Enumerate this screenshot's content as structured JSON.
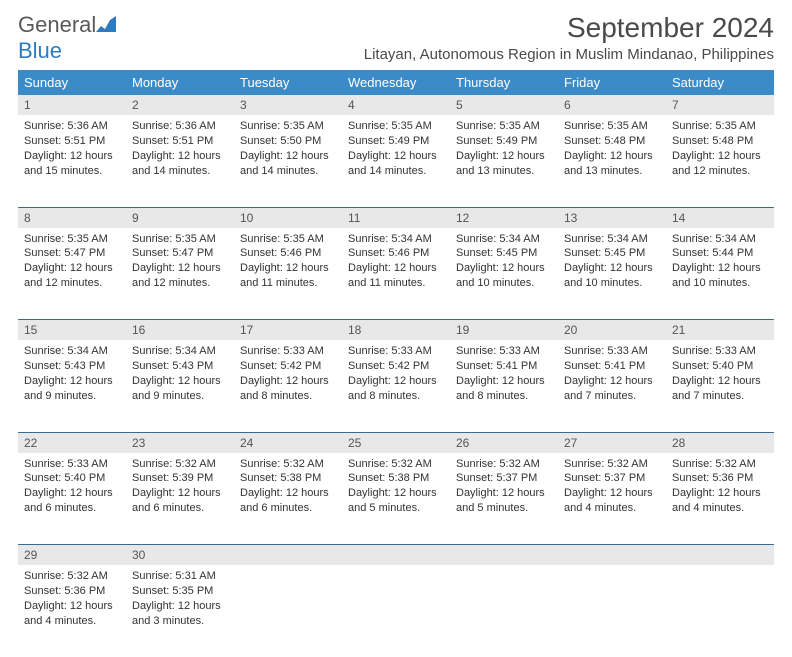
{
  "logo": {
    "text1": "General",
    "text2": "Blue"
  },
  "title": "September 2024",
  "location": "Litayan, Autonomous Region in Muslim Mindanao, Philippines",
  "colors": {
    "header_bg": "#3b8bc9",
    "header_text": "#ffffff",
    "daynum_bg": "#e8e8e8",
    "border": "#3b6a8f",
    "logo_gray": "#5a5a5a",
    "logo_blue": "#2f7bbf"
  },
  "weekdays": [
    "Sunday",
    "Monday",
    "Tuesday",
    "Wednesday",
    "Thursday",
    "Friday",
    "Saturday"
  ],
  "weeks": [
    [
      {
        "n": "1",
        "sunrise": "Sunrise: 5:36 AM",
        "sunset": "Sunset: 5:51 PM",
        "daylight": "Daylight: 12 hours and 15 minutes."
      },
      {
        "n": "2",
        "sunrise": "Sunrise: 5:36 AM",
        "sunset": "Sunset: 5:51 PM",
        "daylight": "Daylight: 12 hours and 14 minutes."
      },
      {
        "n": "3",
        "sunrise": "Sunrise: 5:35 AM",
        "sunset": "Sunset: 5:50 PM",
        "daylight": "Daylight: 12 hours and 14 minutes."
      },
      {
        "n": "4",
        "sunrise": "Sunrise: 5:35 AM",
        "sunset": "Sunset: 5:49 PM",
        "daylight": "Daylight: 12 hours and 14 minutes."
      },
      {
        "n": "5",
        "sunrise": "Sunrise: 5:35 AM",
        "sunset": "Sunset: 5:49 PM",
        "daylight": "Daylight: 12 hours and 13 minutes."
      },
      {
        "n": "6",
        "sunrise": "Sunrise: 5:35 AM",
        "sunset": "Sunset: 5:48 PM",
        "daylight": "Daylight: 12 hours and 13 minutes."
      },
      {
        "n": "7",
        "sunrise": "Sunrise: 5:35 AM",
        "sunset": "Sunset: 5:48 PM",
        "daylight": "Daylight: 12 hours and 12 minutes."
      }
    ],
    [
      {
        "n": "8",
        "sunrise": "Sunrise: 5:35 AM",
        "sunset": "Sunset: 5:47 PM",
        "daylight": "Daylight: 12 hours and 12 minutes."
      },
      {
        "n": "9",
        "sunrise": "Sunrise: 5:35 AM",
        "sunset": "Sunset: 5:47 PM",
        "daylight": "Daylight: 12 hours and 12 minutes."
      },
      {
        "n": "10",
        "sunrise": "Sunrise: 5:35 AM",
        "sunset": "Sunset: 5:46 PM",
        "daylight": "Daylight: 12 hours and 11 minutes."
      },
      {
        "n": "11",
        "sunrise": "Sunrise: 5:34 AM",
        "sunset": "Sunset: 5:46 PM",
        "daylight": "Daylight: 12 hours and 11 minutes."
      },
      {
        "n": "12",
        "sunrise": "Sunrise: 5:34 AM",
        "sunset": "Sunset: 5:45 PM",
        "daylight": "Daylight: 12 hours and 10 minutes."
      },
      {
        "n": "13",
        "sunrise": "Sunrise: 5:34 AM",
        "sunset": "Sunset: 5:45 PM",
        "daylight": "Daylight: 12 hours and 10 minutes."
      },
      {
        "n": "14",
        "sunrise": "Sunrise: 5:34 AM",
        "sunset": "Sunset: 5:44 PM",
        "daylight": "Daylight: 12 hours and 10 minutes."
      }
    ],
    [
      {
        "n": "15",
        "sunrise": "Sunrise: 5:34 AM",
        "sunset": "Sunset: 5:43 PM",
        "daylight": "Daylight: 12 hours and 9 minutes."
      },
      {
        "n": "16",
        "sunrise": "Sunrise: 5:34 AM",
        "sunset": "Sunset: 5:43 PM",
        "daylight": "Daylight: 12 hours and 9 minutes."
      },
      {
        "n": "17",
        "sunrise": "Sunrise: 5:33 AM",
        "sunset": "Sunset: 5:42 PM",
        "daylight": "Daylight: 12 hours and 8 minutes."
      },
      {
        "n": "18",
        "sunrise": "Sunrise: 5:33 AM",
        "sunset": "Sunset: 5:42 PM",
        "daylight": "Daylight: 12 hours and 8 minutes."
      },
      {
        "n": "19",
        "sunrise": "Sunrise: 5:33 AM",
        "sunset": "Sunset: 5:41 PM",
        "daylight": "Daylight: 12 hours and 8 minutes."
      },
      {
        "n": "20",
        "sunrise": "Sunrise: 5:33 AM",
        "sunset": "Sunset: 5:41 PM",
        "daylight": "Daylight: 12 hours and 7 minutes."
      },
      {
        "n": "21",
        "sunrise": "Sunrise: 5:33 AM",
        "sunset": "Sunset: 5:40 PM",
        "daylight": "Daylight: 12 hours and 7 minutes."
      }
    ],
    [
      {
        "n": "22",
        "sunrise": "Sunrise: 5:33 AM",
        "sunset": "Sunset: 5:40 PM",
        "daylight": "Daylight: 12 hours and 6 minutes."
      },
      {
        "n": "23",
        "sunrise": "Sunrise: 5:32 AM",
        "sunset": "Sunset: 5:39 PM",
        "daylight": "Daylight: 12 hours and 6 minutes."
      },
      {
        "n": "24",
        "sunrise": "Sunrise: 5:32 AM",
        "sunset": "Sunset: 5:38 PM",
        "daylight": "Daylight: 12 hours and 6 minutes."
      },
      {
        "n": "25",
        "sunrise": "Sunrise: 5:32 AM",
        "sunset": "Sunset: 5:38 PM",
        "daylight": "Daylight: 12 hours and 5 minutes."
      },
      {
        "n": "26",
        "sunrise": "Sunrise: 5:32 AM",
        "sunset": "Sunset: 5:37 PM",
        "daylight": "Daylight: 12 hours and 5 minutes."
      },
      {
        "n": "27",
        "sunrise": "Sunrise: 5:32 AM",
        "sunset": "Sunset: 5:37 PM",
        "daylight": "Daylight: 12 hours and 4 minutes."
      },
      {
        "n": "28",
        "sunrise": "Sunrise: 5:32 AM",
        "sunset": "Sunset: 5:36 PM",
        "daylight": "Daylight: 12 hours and 4 minutes."
      }
    ],
    [
      {
        "n": "29",
        "sunrise": "Sunrise: 5:32 AM",
        "sunset": "Sunset: 5:36 PM",
        "daylight": "Daylight: 12 hours and 4 minutes."
      },
      {
        "n": "30",
        "sunrise": "Sunrise: 5:31 AM",
        "sunset": "Sunset: 5:35 PM",
        "daylight": "Daylight: 12 hours and 3 minutes."
      },
      null,
      null,
      null,
      null,
      null
    ]
  ]
}
